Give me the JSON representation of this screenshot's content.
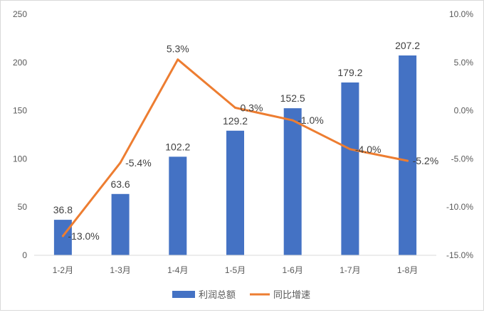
{
  "chart_data": {
    "type": "bar",
    "categories": [
      "1-2月",
      "1-3月",
      "1-4月",
      "1-5月",
      "1-6月",
      "1-7月",
      "1-8月"
    ],
    "series": [
      {
        "name": "利润总额",
        "type": "bar",
        "axis": "left",
        "values": [
          36.8,
          63.6,
          102.2,
          129.2,
          152.5,
          179.2,
          207.2
        ],
        "labels": [
          "36.8",
          "63.6",
          "102.2",
          "129.2",
          "152.5",
          "179.2",
          "207.2"
        ],
        "color": "#4472c4"
      },
      {
        "name": "同比增速",
        "type": "line",
        "axis": "right",
        "values": [
          -13.0,
          -5.4,
          5.3,
          0.3,
          -1.0,
          -4.0,
          -5.2
        ],
        "labels": [
          "-13.0%",
          "-5.4%",
          "5.3%",
          "0.3%",
          "-1.0%",
          "-4.0%",
          "-5.2%"
        ],
        "color": "#ed7d31"
      }
    ],
    "y_left": {
      "min": 0,
      "max": 250,
      "ticks": [
        0,
        50,
        100,
        150,
        200,
        250
      ],
      "tick_labels": [
        "0",
        "50",
        "100",
        "150",
        "200",
        "250"
      ]
    },
    "y_right": {
      "min": -15,
      "max": 10,
      "ticks": [
        -15,
        -10,
        -5,
        0,
        5,
        10
      ],
      "tick_labels": [
        "-15.0%",
        "-10.0%",
        "-5.0%",
        "0.0%",
        "5.0%",
        "10.0%"
      ]
    },
    "grid": false,
    "legend": "bottom",
    "axis_color": "#d9d9d9"
  }
}
